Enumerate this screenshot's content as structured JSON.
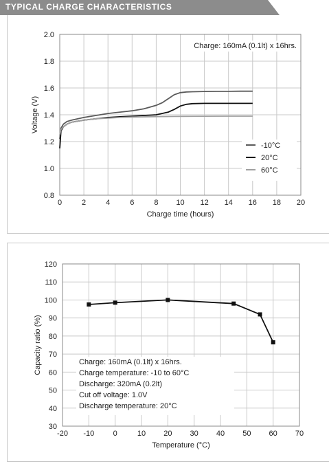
{
  "header": {
    "title": "TYPICAL CHARGE CHARACTERISTICS",
    "color": "#8c8c8c"
  },
  "chart_data": [
    {
      "type": "line",
      "xlabel": "Charge time (hours)",
      "ylabel": "Voltage (V)",
      "xlim": [
        0,
        20
      ],
      "ylim": [
        0.8,
        2.0
      ],
      "xticks": [
        "0",
        "2",
        "4",
        "6",
        "8",
        "10",
        "12",
        "14",
        "16",
        "18",
        "20"
      ],
      "yticks": [
        "0.8",
        "1.0",
        "1.2",
        "1.4",
        "1.6",
        "1.8",
        "2.0"
      ],
      "grid": true,
      "annotation": "Charge: 160mA (0.1lt) x 16hrs.",
      "legend_position": "bottom-right",
      "series": [
        {
          "name": "-10°C",
          "color": "#5a5a5a",
          "x": [
            0,
            0.1,
            0.3,
            0.6,
            1,
            2,
            3,
            4,
            5,
            6,
            7,
            8,
            8.5,
            9,
            9.5,
            10,
            10.5,
            11,
            12,
            13,
            14,
            15,
            16
          ],
          "y": [
            1.22,
            1.3,
            1.33,
            1.35,
            1.36,
            1.38,
            1.395,
            1.41,
            1.42,
            1.43,
            1.445,
            1.47,
            1.49,
            1.52,
            1.55,
            1.565,
            1.57,
            1.572,
            1.574,
            1.575,
            1.575,
            1.576,
            1.576
          ]
        },
        {
          "name": "20°C",
          "color": "#111111",
          "x": [
            0,
            0.1,
            0.3,
            0.6,
            1,
            2,
            3,
            4,
            5,
            6,
            7,
            8,
            9,
            9.5,
            10,
            10.5,
            11,
            12,
            13,
            14,
            15,
            16
          ],
          "y": [
            1.15,
            1.28,
            1.31,
            1.33,
            1.345,
            1.36,
            1.37,
            1.38,
            1.385,
            1.39,
            1.395,
            1.4,
            1.42,
            1.44,
            1.465,
            1.478,
            1.483,
            1.485,
            1.485,
            1.485,
            1.485,
            1.485
          ]
        },
        {
          "name": "60°C",
          "color": "#a0a0a0",
          "x": [
            0,
            0.1,
            0.3,
            0.6,
            1,
            2,
            3,
            4,
            5,
            6,
            8,
            10,
            12,
            14,
            16
          ],
          "y": [
            1.25,
            1.29,
            1.31,
            1.33,
            1.345,
            1.36,
            1.37,
            1.375,
            1.38,
            1.383,
            1.386,
            1.388,
            1.389,
            1.39,
            1.39
          ]
        }
      ]
    },
    {
      "type": "line",
      "xlabel": "Temperature (°C)",
      "ylabel": "Capacity ratio (%)",
      "xlim": [
        -20,
        70
      ],
      "ylim": [
        30,
        120
      ],
      "xticks": [
        "-20",
        "-10",
        "0",
        "10",
        "20",
        "30",
        "40",
        "50",
        "60",
        "70"
      ],
      "yticks": [
        "30",
        "40",
        "50",
        "60",
        "70",
        "80",
        "90",
        "100",
        "110",
        "120"
      ],
      "grid": true,
      "annotation_lines": [
        "Charge: 160mA (0.1lt) x 16hrs.",
        "Charge temperature: -10 to 60°C",
        "Discharge: 320mA (0.2lt)",
        "Cut off voltage: 1.0V",
        "Discharge temperature: 20°C"
      ],
      "series": [
        {
          "color": "#111111",
          "x": [
            -10,
            0,
            20,
            45,
            55,
            60
          ],
          "y": [
            97.5,
            98.5,
            100,
            98,
            92,
            76.5
          ]
        }
      ]
    }
  ]
}
